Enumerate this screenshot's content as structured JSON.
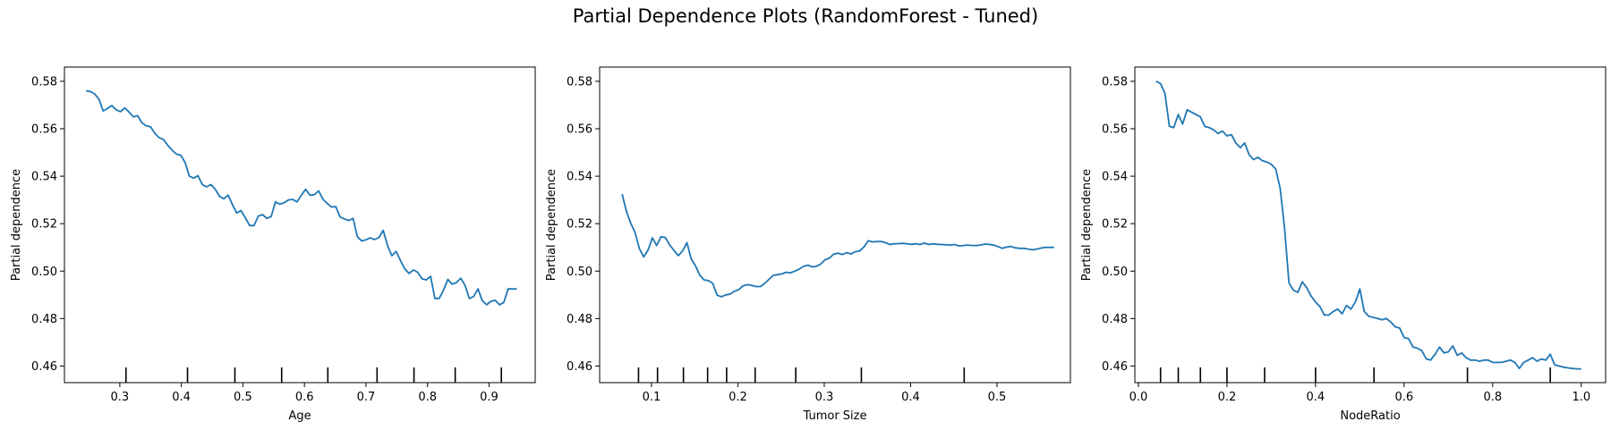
{
  "figure": {
    "title": "Partial Dependence Plots (RandomForest - Tuned)"
  },
  "style": {
    "line_color": "#1f77b4",
    "axis_color": "#000000"
  },
  "chart_data": [
    {
      "type": "line",
      "xlabel": "Age",
      "ylabel": "Partial dependence",
      "xlim": [
        0.21,
        0.975
      ],
      "ylim": [
        0.453,
        0.586
      ],
      "xticks": [
        0.3,
        0.4,
        0.5,
        0.6,
        0.7,
        0.8,
        0.9
      ],
      "xtick_labels": [
        "0.3",
        "0.4",
        "0.5",
        "0.6",
        "0.7",
        "0.8",
        "0.9"
      ],
      "yticks": [
        0.46,
        0.48,
        0.5,
        0.52,
        0.54,
        0.56,
        0.58
      ],
      "ytick_labels": [
        "0.46",
        "0.48",
        "0.50",
        "0.52",
        "0.54",
        "0.56",
        "0.58"
      ],
      "deciles": [
        0.31,
        0.41,
        0.487,
        0.563,
        0.638,
        0.718,
        0.778,
        0.845,
        0.92
      ],
      "series": [
        {
          "x": [
            0.245,
            0.252,
            0.259,
            0.266,
            0.273,
            0.28,
            0.287,
            0.294,
            0.301,
            0.308,
            0.315,
            0.322,
            0.329,
            0.336,
            0.343,
            0.35,
            0.357,
            0.364,
            0.371,
            0.378,
            0.385,
            0.392,
            0.399,
            0.406,
            0.413,
            0.42,
            0.427,
            0.434,
            0.441,
            0.448,
            0.455,
            0.462,
            0.469,
            0.476,
            0.483,
            0.49,
            0.497,
            0.504,
            0.511,
            0.518,
            0.525,
            0.532,
            0.539,
            0.546,
            0.553,
            0.56,
            0.567,
            0.574,
            0.581,
            0.588,
            0.595,
            0.602,
            0.609,
            0.616,
            0.623,
            0.63,
            0.637,
            0.644,
            0.651,
            0.658,
            0.665,
            0.672,
            0.679,
            0.686,
            0.693,
            0.7,
            0.707,
            0.714,
            0.721,
            0.728,
            0.735,
            0.742,
            0.749,
            0.756,
            0.763,
            0.77,
            0.777,
            0.784,
            0.791,
            0.798,
            0.805,
            0.812,
            0.819,
            0.826,
            0.833,
            0.84,
            0.847,
            0.854,
            0.861,
            0.868,
            0.875,
            0.882,
            0.889,
            0.896,
            0.903,
            0.91,
            0.917,
            0.924,
            0.931,
            0.938,
            0.945
          ],
          "y": [
            0.576,
            0.5757,
            0.5747,
            0.5725,
            0.5675,
            0.5685,
            0.5698,
            0.568,
            0.5672,
            0.5688,
            0.567,
            0.565,
            0.5655,
            0.5625,
            0.5612,
            0.5608,
            0.558,
            0.5562,
            0.5555,
            0.553,
            0.551,
            0.5493,
            0.5488,
            0.5458,
            0.54,
            0.5392,
            0.5402,
            0.5365,
            0.5355,
            0.5365,
            0.5345,
            0.5315,
            0.5305,
            0.532,
            0.528,
            0.5245,
            0.5255,
            0.5225,
            0.5192,
            0.5192,
            0.5232,
            0.5238,
            0.5222,
            0.523,
            0.5292,
            0.5282,
            0.5288,
            0.53,
            0.5302,
            0.5292,
            0.532,
            0.5345,
            0.532,
            0.5322,
            0.5338,
            0.5303,
            0.5285,
            0.527,
            0.5272,
            0.5228,
            0.522,
            0.5213,
            0.5222,
            0.5145,
            0.5127,
            0.5132,
            0.514,
            0.5133,
            0.5142,
            0.5172,
            0.5108,
            0.5065,
            0.5083,
            0.5045,
            0.501,
            0.499,
            0.5005,
            0.4995,
            0.4968,
            0.4963,
            0.4978,
            0.4885,
            0.4885,
            0.492,
            0.4965,
            0.4945,
            0.4952,
            0.497,
            0.494,
            0.4885,
            0.4893,
            0.4925,
            0.4875,
            0.4858,
            0.4873,
            0.4877,
            0.4858,
            0.4868,
            0.4925,
            0.4925,
            0.4925
          ]
        }
      ]
    },
    {
      "type": "line",
      "xlabel": "Tumor Size",
      "ylabel": "Partial dependence",
      "xlim": [
        0.04,
        0.585
      ],
      "ylim": [
        0.453,
        0.586
      ],
      "xticks": [
        0.1,
        0.2,
        0.3,
        0.4,
        0.5
      ],
      "xtick_labels": [
        "0.1",
        "0.2",
        "0.3",
        "0.4",
        "0.5"
      ],
      "yticks": [
        0.46,
        0.48,
        0.5,
        0.52,
        0.54,
        0.56,
        0.58
      ],
      "ytick_labels": [
        "0.46",
        "0.48",
        "0.50",
        "0.52",
        "0.54",
        "0.56",
        "0.58"
      ],
      "deciles": [
        0.085,
        0.107,
        0.137,
        0.165,
        0.187,
        0.22,
        0.267,
        0.343,
        0.462
      ],
      "series": [
        {
          "x": [
            0.066,
            0.071,
            0.076,
            0.081,
            0.086,
            0.091,
            0.096,
            0.101,
            0.106,
            0.111,
            0.116,
            0.121,
            0.126,
            0.131,
            0.136,
            0.141,
            0.146,
            0.151,
            0.156,
            0.161,
            0.166,
            0.171,
            0.176,
            0.181,
            0.186,
            0.191,
            0.196,
            0.201,
            0.206,
            0.211,
            0.216,
            0.221,
            0.226,
            0.231,
            0.236,
            0.241,
            0.246,
            0.251,
            0.256,
            0.261,
            0.266,
            0.271,
            0.276,
            0.281,
            0.286,
            0.291,
            0.296,
            0.301,
            0.306,
            0.311,
            0.316,
            0.321,
            0.326,
            0.331,
            0.336,
            0.341,
            0.346,
            0.351,
            0.356,
            0.361,
            0.366,
            0.371,
            0.376,
            0.381,
            0.386,
            0.391,
            0.396,
            0.401,
            0.406,
            0.411,
            0.416,
            0.421,
            0.426,
            0.431,
            0.436,
            0.441,
            0.446,
            0.451,
            0.456,
            0.461,
            0.466,
            0.471,
            0.476,
            0.481,
            0.486,
            0.491,
            0.496,
            0.501,
            0.506,
            0.511,
            0.516,
            0.521,
            0.526,
            0.531,
            0.536,
            0.541,
            0.546,
            0.551,
            0.556,
            0.561,
            0.566
          ],
          "y": [
            0.5325,
            0.5252,
            0.5202,
            0.5162,
            0.5095,
            0.506,
            0.5088,
            0.514,
            0.5108,
            0.5145,
            0.5142,
            0.511,
            0.5088,
            0.5065,
            0.5085,
            0.512,
            0.5052,
            0.5022,
            0.4982,
            0.4963,
            0.496,
            0.4948,
            0.4898,
            0.4892,
            0.49,
            0.4903,
            0.4915,
            0.4922,
            0.4938,
            0.4943,
            0.494,
            0.4935,
            0.4935,
            0.4948,
            0.4965,
            0.4982,
            0.4985,
            0.4988,
            0.4995,
            0.4993,
            0.5,
            0.5008,
            0.502,
            0.5025,
            0.5018,
            0.502,
            0.503,
            0.5048,
            0.5055,
            0.5072,
            0.5075,
            0.507,
            0.5078,
            0.5072,
            0.5082,
            0.5085,
            0.5102,
            0.5128,
            0.5123,
            0.5125,
            0.5125,
            0.512,
            0.5112,
            0.5115,
            0.5116,
            0.5117,
            0.5115,
            0.5113,
            0.5115,
            0.5112,
            0.5118,
            0.5112,
            0.5115,
            0.5113,
            0.5112,
            0.5111,
            0.511,
            0.5112,
            0.5106,
            0.5108,
            0.511,
            0.5108,
            0.5108,
            0.511,
            0.5114,
            0.5113,
            0.511,
            0.5104,
            0.5096,
            0.5101,
            0.5104,
            0.5098,
            0.5096,
            0.5096,
            0.5093,
            0.509,
            0.5093,
            0.5097,
            0.51,
            0.51,
            0.51
          ]
        }
      ]
    },
    {
      "type": "line",
      "xlabel": "NodeRatio",
      "ylabel": "Partial dependence",
      "xlim": [
        -0.008,
        1.055
      ],
      "ylim": [
        0.453,
        0.586
      ],
      "xticks": [
        0.0,
        0.2,
        0.4,
        0.6,
        0.8,
        1.0
      ],
      "xtick_labels": [
        "0.0",
        "0.2",
        "0.4",
        "0.6",
        "0.8",
        "1.0"
      ],
      "yticks": [
        0.46,
        0.48,
        0.5,
        0.52,
        0.54,
        0.56,
        0.58
      ],
      "ytick_labels": [
        "0.46",
        "0.48",
        "0.50",
        "0.52",
        "0.54",
        "0.56",
        "0.58"
      ],
      "deciles": [
        0.05,
        0.09,
        0.14,
        0.2,
        0.285,
        0.4,
        0.532,
        0.743,
        0.93
      ],
      "series": [
        {
          "x": [
            0.04,
            0.05,
            0.06,
            0.07,
            0.08,
            0.09,
            0.1,
            0.11,
            0.12,
            0.13,
            0.14,
            0.15,
            0.16,
            0.17,
            0.18,
            0.19,
            0.2,
            0.21,
            0.22,
            0.23,
            0.24,
            0.25,
            0.26,
            0.27,
            0.28,
            0.29,
            0.3,
            0.31,
            0.32,
            0.33,
            0.34,
            0.35,
            0.36,
            0.37,
            0.38,
            0.39,
            0.4,
            0.41,
            0.42,
            0.43,
            0.44,
            0.45,
            0.46,
            0.47,
            0.48,
            0.49,
            0.5,
            0.51,
            0.52,
            0.53,
            0.54,
            0.55,
            0.56,
            0.57,
            0.58,
            0.59,
            0.6,
            0.61,
            0.62,
            0.63,
            0.64,
            0.65,
            0.66,
            0.67,
            0.68,
            0.69,
            0.7,
            0.71,
            0.72,
            0.73,
            0.74,
            0.75,
            0.76,
            0.77,
            0.78,
            0.79,
            0.8,
            0.81,
            0.82,
            0.83,
            0.84,
            0.85,
            0.86,
            0.87,
            0.88,
            0.89,
            0.9,
            0.91,
            0.92,
            0.93,
            0.94,
            0.95,
            0.96,
            0.97,
            0.98,
            0.99,
            1.0
          ],
          "y": [
            0.58,
            0.579,
            0.575,
            0.561,
            0.5605,
            0.566,
            0.562,
            0.568,
            0.567,
            0.566,
            0.565,
            0.561,
            0.5605,
            0.5595,
            0.558,
            0.559,
            0.557,
            0.5575,
            0.554,
            0.552,
            0.554,
            0.549,
            0.547,
            0.548,
            0.5465,
            0.546,
            0.545,
            0.543,
            0.535,
            0.518,
            0.495,
            0.492,
            0.491,
            0.4955,
            0.493,
            0.4895,
            0.487,
            0.485,
            0.4815,
            0.4815,
            0.483,
            0.484,
            0.482,
            0.4855,
            0.484,
            0.487,
            0.4925,
            0.483,
            0.481,
            0.4805,
            0.48,
            0.4795,
            0.48,
            0.4785,
            0.4765,
            0.476,
            0.472,
            0.4715,
            0.468,
            0.4675,
            0.4665,
            0.463,
            0.4625,
            0.465,
            0.468,
            0.4655,
            0.466,
            0.4685,
            0.4645,
            0.4655,
            0.4635,
            0.4625,
            0.4625,
            0.462,
            0.4625,
            0.4625,
            0.4615,
            0.4615,
            0.4615,
            0.462,
            0.4625,
            0.4615,
            0.459,
            0.4615,
            0.4625,
            0.4635,
            0.462,
            0.463,
            0.4625,
            0.465,
            0.4605,
            0.46,
            0.4595,
            0.4592,
            0.459,
            0.4588,
            0.4588
          ]
        }
      ]
    }
  ]
}
